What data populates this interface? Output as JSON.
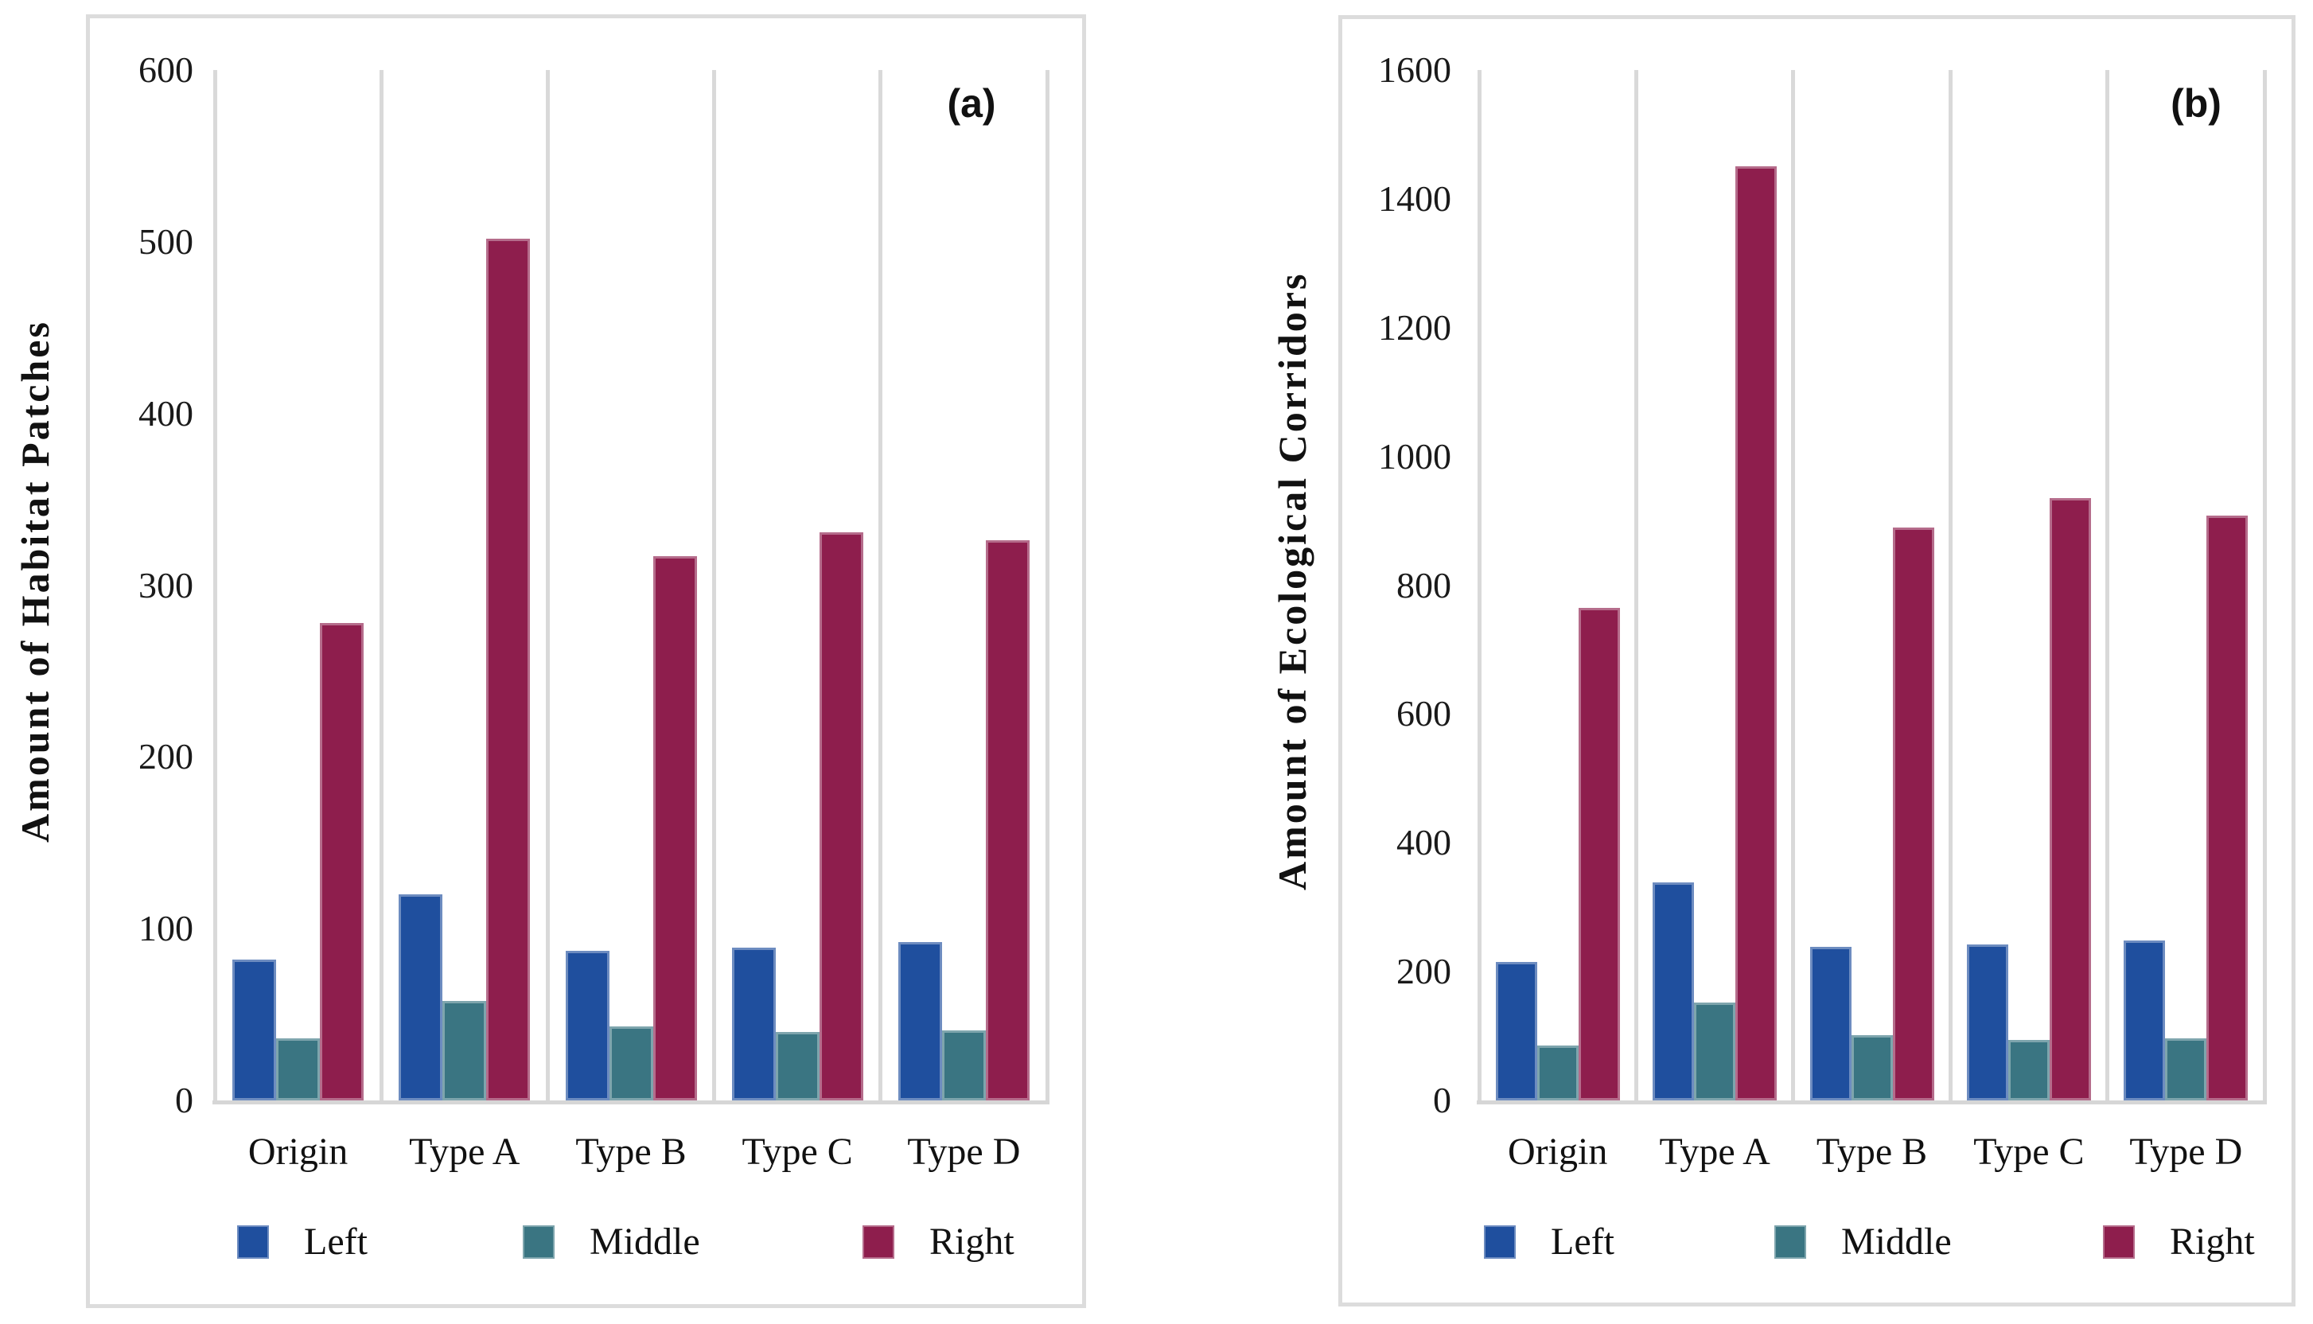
{
  "chart_data": [
    {
      "type": "bar",
      "panel_label": "(a)",
      "ylabel": "Amount of Habitat Patches",
      "xlabel": "",
      "categories": [
        "Origin",
        "Type A",
        "Type B",
        "Type C",
        "Type D"
      ],
      "series": [
        {
          "name": "Left",
          "color": "#1F4F9E",
          "values": [
            82,
            120,
            87,
            89,
            92
          ]
        },
        {
          "name": "Middle",
          "color": "#3A7582",
          "values": [
            36,
            58,
            43,
            40,
            41
          ]
        },
        {
          "name": "Right",
          "color": "#8E1E4D",
          "values": [
            278,
            502,
            317,
            331,
            326
          ]
        }
      ],
      "ylim": [
        0,
        600
      ],
      "ytick_step": 100,
      "grid": "vertical-only",
      "gridline_color": "#d9d9d9",
      "legend_position": "bottom"
    },
    {
      "type": "bar",
      "panel_label": "(b)",
      "ylabel": "Amount of Ecological Corridors",
      "xlabel": "",
      "categories": [
        "Origin",
        "Type A",
        "Type B",
        "Type C",
        "Type D"
      ],
      "series": [
        {
          "name": "Left",
          "color": "#1F4F9E",
          "values": [
            215,
            338,
            238,
            242,
            248
          ]
        },
        {
          "name": "Middle",
          "color": "#3A7582",
          "values": [
            85,
            152,
            101,
            94,
            96
          ]
        },
        {
          "name": "Right",
          "color": "#8E1E4D",
          "values": [
            765,
            1450,
            890,
            935,
            908
          ]
        }
      ],
      "ylim": [
        0,
        1600
      ],
      "ytick_step": 200,
      "grid": "vertical-only",
      "gridline_color": "#d9d9d9",
      "legend_position": "bottom"
    }
  ]
}
